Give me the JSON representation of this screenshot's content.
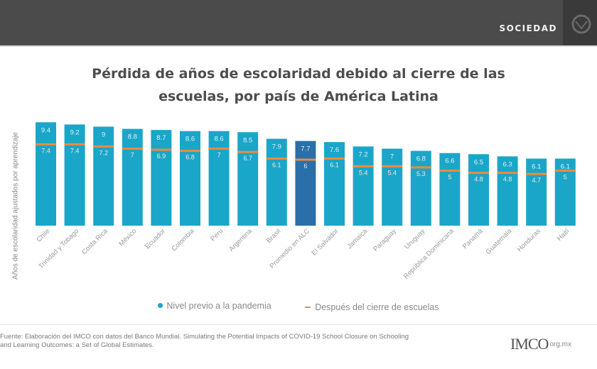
{
  "header": {
    "section": "SOCIEDAD",
    "corner_icon": "lion-emblem-icon"
  },
  "chart_data": {
    "type": "bar",
    "title_line1": "Pérdida de años de escolaridad debido al cierre de las",
    "title_line2": "escuelas, por país de América Latina",
    "ylabel": "Años de escolaridad ajustados por aprendizaje",
    "xlabel": "",
    "ylim": [
      0,
      10
    ],
    "grid": false,
    "legend_position": "bottom",
    "categories": [
      "Chile",
      "Trinidad y Tobago",
      "Costa Rica",
      "México",
      "Ecuador",
      "Colombia",
      "Perú",
      "Argentina",
      "Brasil",
      "Promedio en ALC",
      "El Salvador",
      "Jamaica",
      "Paraguay",
      "Uruguay",
      "República Dominicana",
      "Panamá",
      "Guatemala",
      "Honduras",
      "Haití"
    ],
    "series": [
      {
        "name": "Nivel previo a la pandemia",
        "color": "#1aa6c9",
        "values": [
          9.4,
          9.2,
          9,
          8.8,
          8.7,
          8.6,
          8.6,
          8.5,
          7.9,
          7.7,
          7.6,
          7.2,
          7,
          6.8,
          6.6,
          6.5,
          6.3,
          6.1,
          6.1
        ]
      },
      {
        "name": "Después del cierre de escuelas",
        "color": "#f08a3c",
        "values": [
          7.4,
          7.4,
          7.2,
          7,
          6.9,
          6.8,
          7,
          6.7,
          6.1,
          6,
          6.1,
          5.4,
          5.4,
          5.3,
          5,
          4.8,
          4.8,
          4.7,
          5
        ]
      }
    ],
    "highlight_category": "Promedio en ALC",
    "highlight_color": "#2a6fa8"
  },
  "footer": {
    "source_line1": "Fuente: Elaboración del IMCO con datos del Banco Mundial. Simulating the Potential Impacts of COVID-19 School Closure on Schooling",
    "source_line2": "and Learning Outcomes: a Set of Global Estimates.",
    "logo_text": "IMCO",
    "logo_url": "org.mx"
  }
}
